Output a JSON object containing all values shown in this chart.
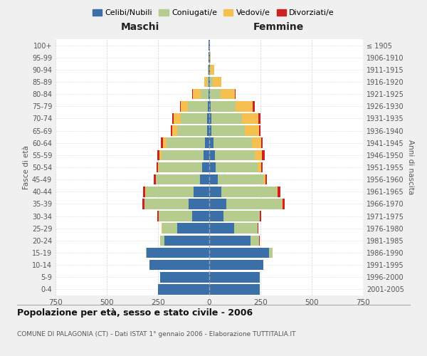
{
  "age_groups": [
    "0-4",
    "5-9",
    "10-14",
    "15-19",
    "20-24",
    "25-29",
    "30-34",
    "35-39",
    "40-44",
    "45-49",
    "50-54",
    "55-59",
    "60-64",
    "65-69",
    "70-74",
    "75-79",
    "80-84",
    "85-89",
    "90-94",
    "95-99",
    "100+"
  ],
  "birth_years": [
    "2001-2005",
    "1996-2000",
    "1991-1995",
    "1986-1990",
    "1981-1985",
    "1976-1980",
    "1971-1975",
    "1966-1970",
    "1961-1965",
    "1956-1960",
    "1951-1955",
    "1946-1950",
    "1941-1945",
    "1936-1940",
    "1931-1935",
    "1926-1930",
    "1921-1925",
    "1916-1920",
    "1911-1915",
    "1906-1910",
    "≤ 1905"
  ],
  "colors": {
    "celibi": "#3a6fa8",
    "coniugati": "#b5cc8e",
    "vedovi": "#f5c050",
    "divorziati": "#cc2222"
  },
  "males": {
    "celibi": [
      250,
      240,
      290,
      305,
      220,
      155,
      85,
      100,
      75,
      45,
      35,
      28,
      22,
      12,
      10,
      8,
      5,
      3,
      2,
      2,
      2
    ],
    "coniugati": [
      0,
      0,
      0,
      5,
      18,
      75,
      160,
      215,
      235,
      215,
      210,
      205,
      185,
      145,
      130,
      95,
      35,
      8,
      3,
      0,
      0
    ],
    "vedovi": [
      0,
      0,
      0,
      0,
      2,
      2,
      2,
      2,
      2,
      2,
      5,
      10,
      20,
      25,
      35,
      35,
      40,
      12,
      3,
      0,
      0
    ],
    "divorziati": [
      0,
      0,
      0,
      0,
      0,
      2,
      5,
      8,
      10,
      8,
      8,
      12,
      8,
      5,
      5,
      5,
      2,
      0,
      0,
      0,
      0
    ]
  },
  "females": {
    "celibi": [
      245,
      245,
      265,
      290,
      200,
      120,
      70,
      85,
      60,
      40,
      32,
      28,
      22,
      12,
      10,
      8,
      5,
      3,
      3,
      2,
      2
    ],
    "coniugati": [
      0,
      0,
      0,
      18,
      42,
      115,
      175,
      270,
      270,
      225,
      205,
      195,
      185,
      160,
      150,
      120,
      50,
      15,
      5,
      0,
      0
    ],
    "vedovi": [
      0,
      0,
      0,
      0,
      2,
      2,
      2,
      2,
      5,
      8,
      15,
      35,
      45,
      70,
      80,
      85,
      70,
      40,
      15,
      5,
      0
    ],
    "divorziati": [
      0,
      0,
      0,
      0,
      2,
      2,
      5,
      12,
      12,
      8,
      10,
      12,
      10,
      8,
      10,
      8,
      2,
      2,
      0,
      0,
      0
    ]
  },
  "title": "Popolazione per età, sesso e stato civile - 2006",
  "subtitle": "COMUNE DI PALAGONIA (CT) - Dati ISTAT 1° gennaio 2006 - Elaborazione TUTTITALIA.IT",
  "xlabel_left": "Maschi",
  "xlabel_right": "Femmine",
  "ylabel_left": "Fasce di età",
  "ylabel_right": "Anni di nascita",
  "xlim": 750,
  "legend_labels": [
    "Celibi/Nubili",
    "Coniugati/e",
    "Vedovi/e",
    "Divorziati/e"
  ],
  "background_color": "#f0f0f0",
  "plot_bg": "#ffffff",
  "grid_color": "#cccccc"
}
